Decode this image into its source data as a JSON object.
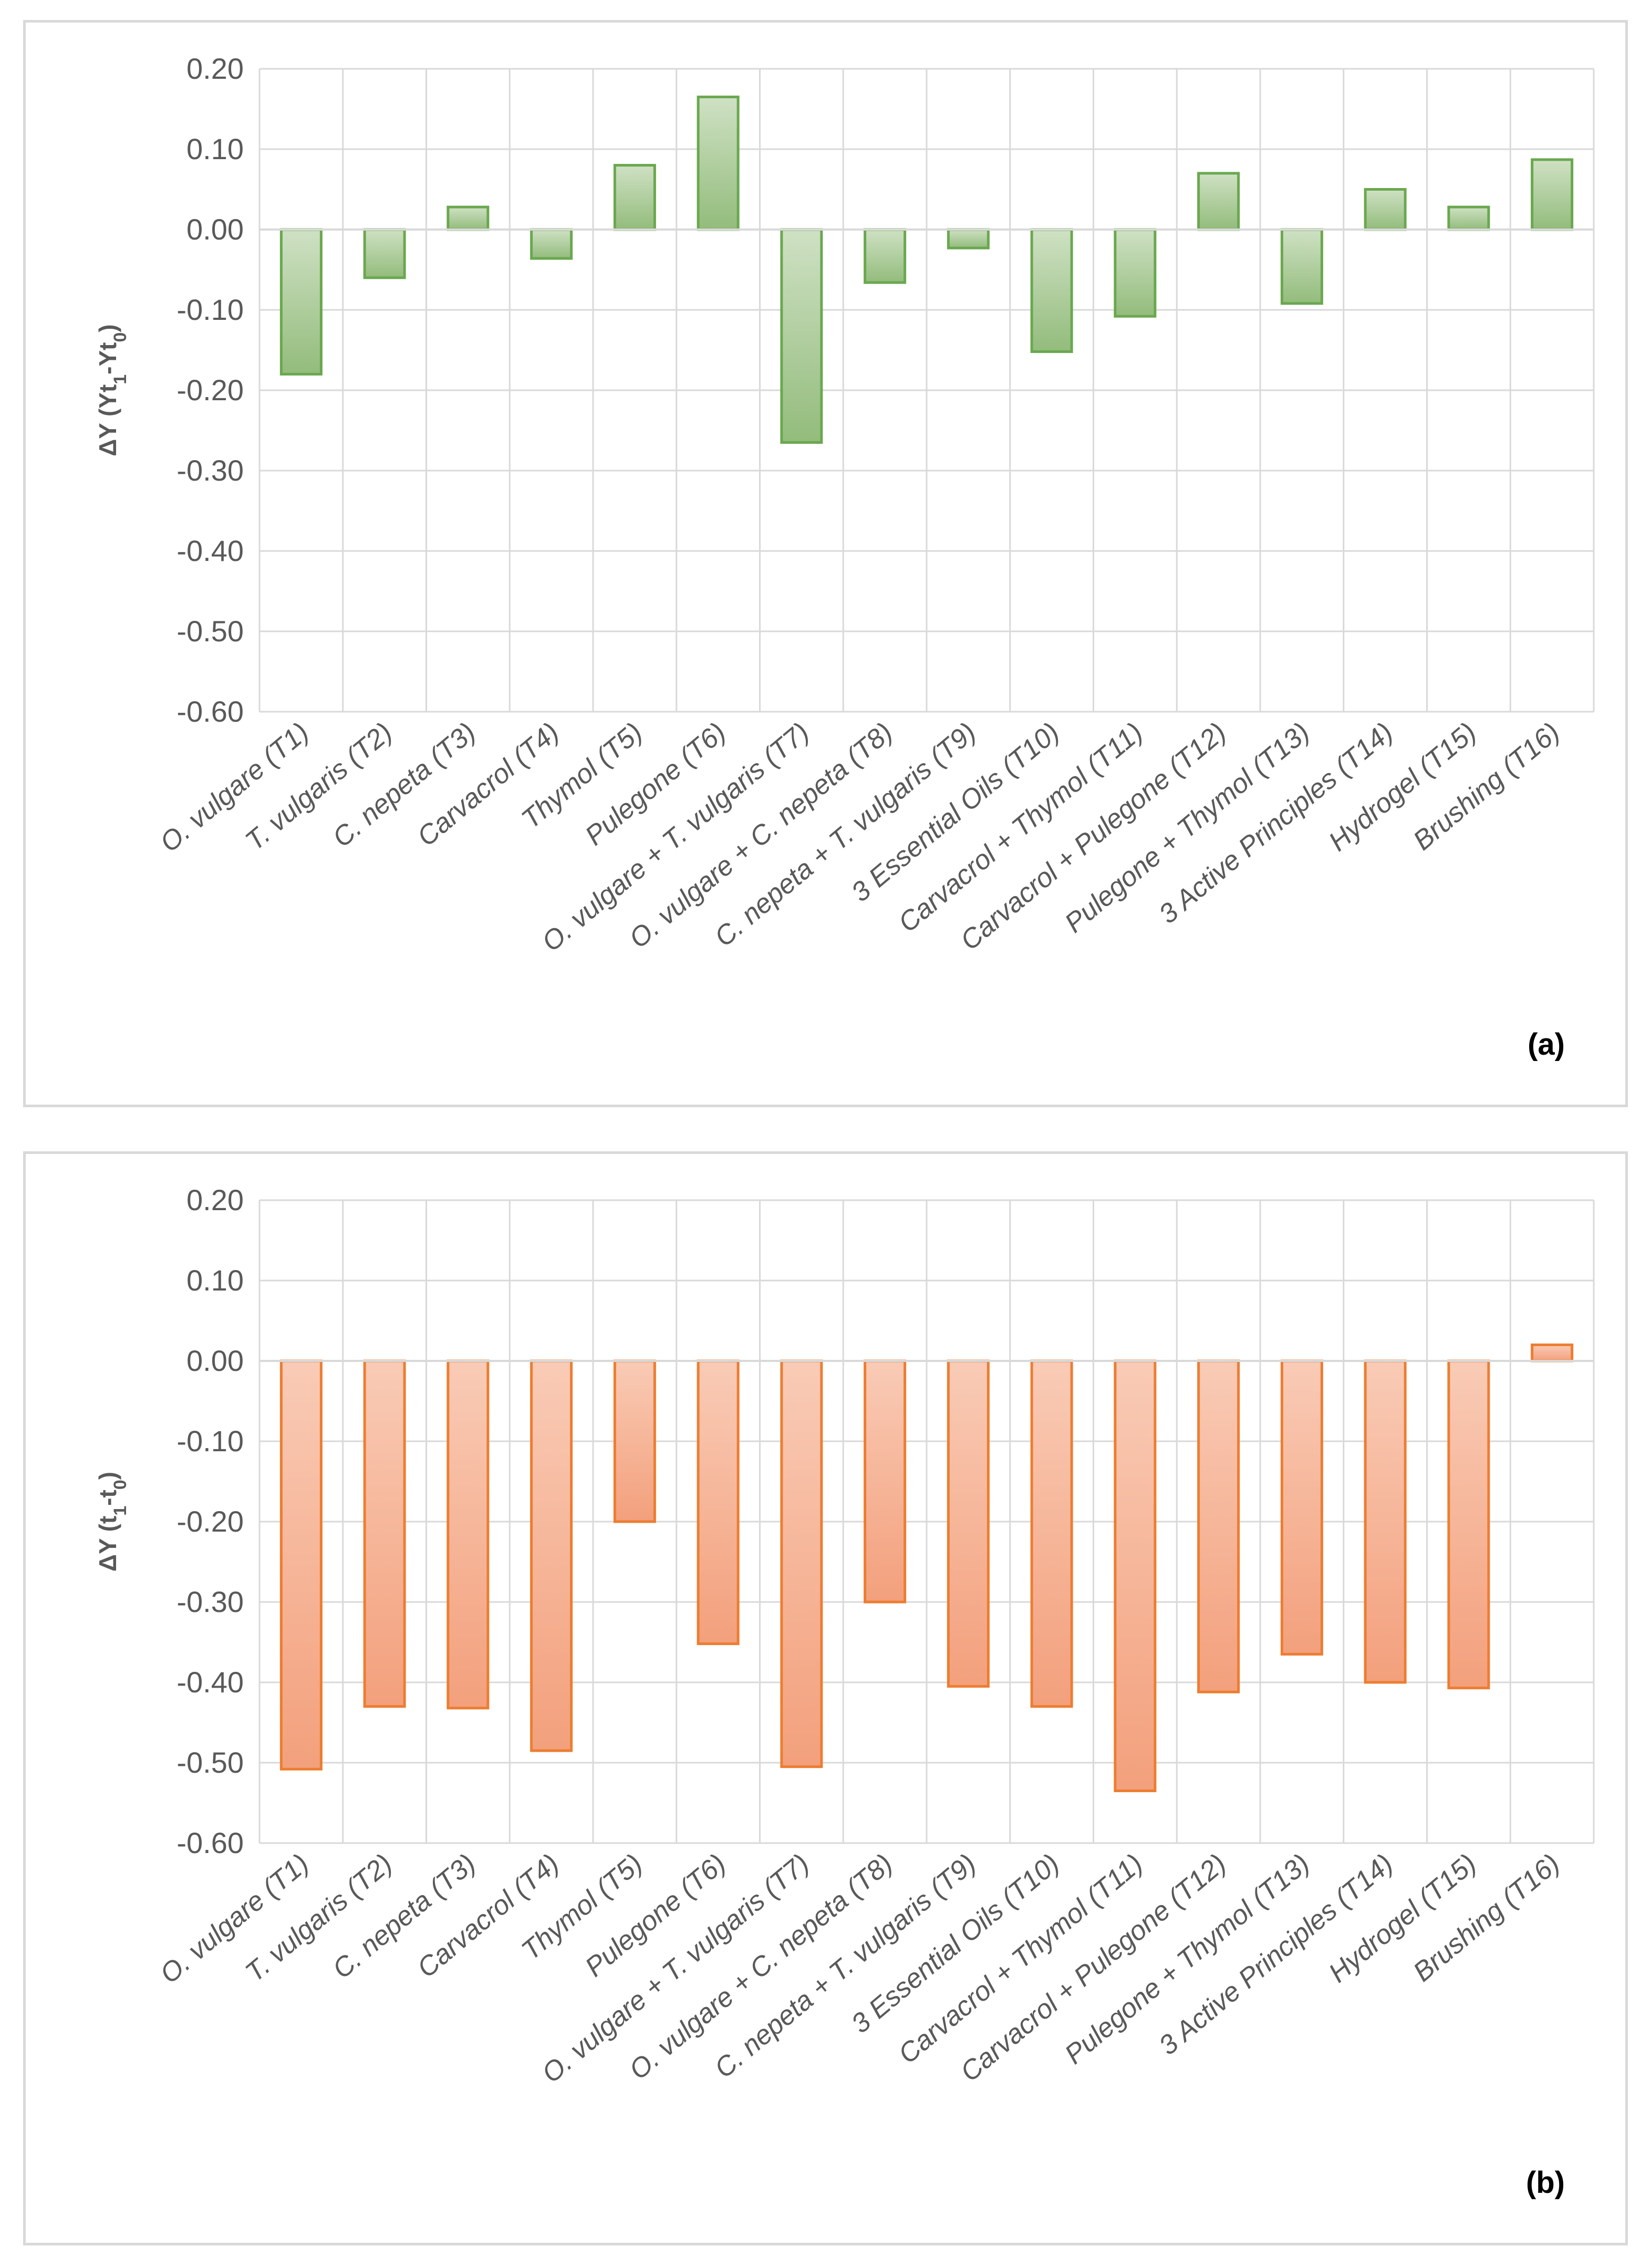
{
  "chart_data": [
    {
      "type": "bar",
      "panel_label": "(a)",
      "ylabel_main": "ΔY (Yt",
      "ylabel_sub1": "1",
      "ylabel_mid": "-Yt",
      "ylabel_sub2": "0",
      "ylabel_end": ")",
      "ylim": [
        -0.6,
        0.2
      ],
      "yticks": [
        "0.20",
        "0.10",
        "0.00",
        "-0.10",
        "-0.20",
        "-0.30",
        "-0.40",
        "-0.50",
        "-0.60"
      ],
      "categories": [
        "O. vulgare (T1)",
        "T. vulgaris (T2)",
        "C. nepeta (T3)",
        "Carvacrol (T4)",
        "Thymol (T5)",
        "Pulegone (T6)",
        "O. vulgare + T. vulgaris (T7)",
        "O. vulgare + C. nepeta (T8)",
        "C. nepeta + T. vulgaris (T9)",
        "3 Essential Oils (T10)",
        "Carvacrol + Thymol (T11)",
        "Carvacrol + Pulegone (T12)",
        "Pulegone + Thymol (T13)",
        "3 Active Principles (T14)",
        "Hydrogel (T15)",
        "Brushing (T16)"
      ],
      "values": [
        -0.18,
        -0.06,
        0.028,
        -0.036,
        0.08,
        0.165,
        -0.265,
        -0.066,
        -0.023,
        -0.152,
        -0.108,
        0.07,
        -0.092,
        0.05,
        0.028,
        0.087
      ],
      "colors": {
        "fill_top": "#cfe1c4",
        "fill_bottom": "#93bc7c",
        "stroke": "#6aa84f"
      }
    },
    {
      "type": "bar",
      "panel_label": "(b)",
      "ylabel_main": "ΔY (t",
      "ylabel_sub1": "1",
      "ylabel_mid": "-t",
      "ylabel_sub2": "0",
      "ylabel_end": ")",
      "ylim": [
        -0.6,
        0.2
      ],
      "yticks": [
        "0.20",
        "0.10",
        "0.00",
        "-0.10",
        "-0.20",
        "-0.30",
        "-0.40",
        "-0.50",
        "-0.60"
      ],
      "categories": [
        "O. vulgare (T1)",
        "T. vulgaris (T2)",
        "C. nepeta (T3)",
        "Carvacrol (T4)",
        "Thymol (T5)",
        "Pulegone (T6)",
        "O. vulgare + T. vulgaris (T7)",
        "O. vulgare + C. nepeta (T8)",
        "C. nepeta + T. vulgaris (T9)",
        "3 Essential Oils (T10)",
        "Carvacrol + Thymol (T11)",
        "Carvacrol + Pulegone (T12)",
        "Pulegone + Thymol (T13)",
        "3 Active Principles (T14)",
        "Hydrogel (T15)",
        "Brushing (T16)"
      ],
      "values": [
        -0.508,
        -0.43,
        -0.432,
        -0.485,
        -0.2,
        -0.352,
        -0.505,
        -0.3,
        -0.405,
        -0.43,
        -0.535,
        -0.412,
        -0.365,
        -0.4,
        -0.407,
        0.02
      ],
      "colors": {
        "fill_top": "#f9cbb6",
        "fill_bottom": "#f3a07c",
        "stroke": "#ed7d31"
      }
    }
  ]
}
